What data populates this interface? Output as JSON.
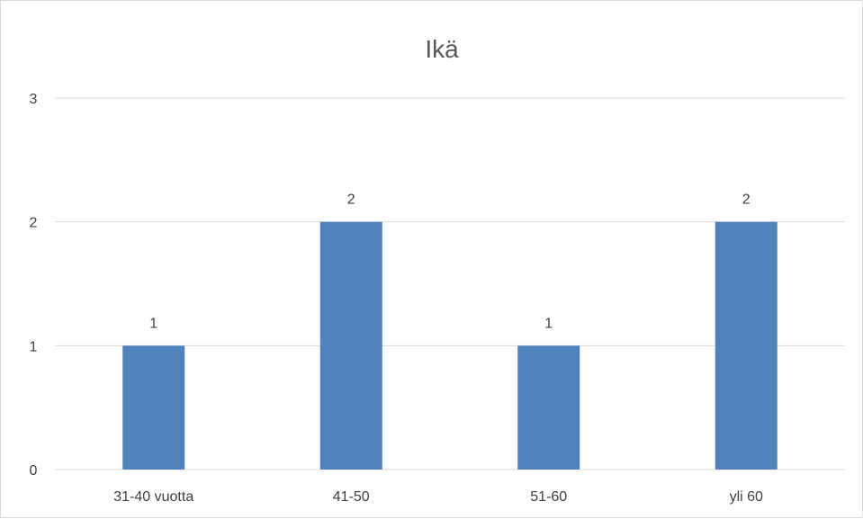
{
  "chart_data": {
    "type": "bar",
    "title": "Ikä",
    "xlabel": "",
    "ylabel": "",
    "categories": [
      "31-40 vuotta",
      "41-50",
      "51-60",
      "yli 60"
    ],
    "values": [
      1,
      2,
      1,
      2
    ],
    "data_labels": [
      "1",
      "2",
      "1",
      "2"
    ],
    "y_ticks": [
      "0",
      "1",
      "2",
      "3"
    ],
    "ylim": [
      0,
      3
    ],
    "grid": true,
    "legend": "none",
    "bar_color": "#4f81bd"
  }
}
